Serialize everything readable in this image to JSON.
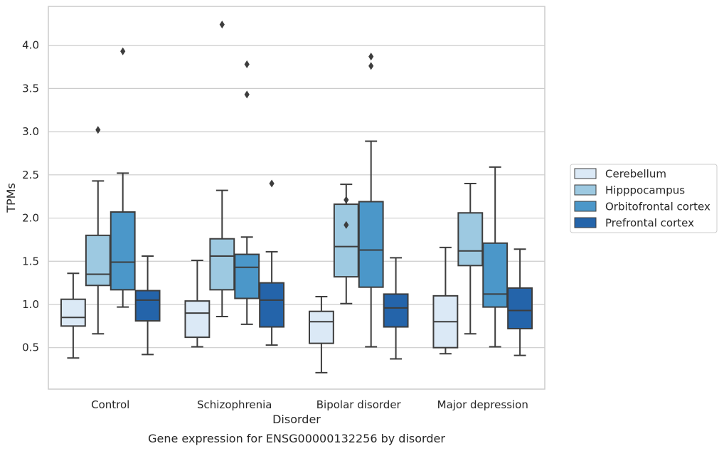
{
  "chart_data": {
    "type": "box",
    "caption": "Gene expression for ENSG00000132256 by disorder",
    "xlabel": "Disorder",
    "ylabel": "TPMs",
    "ylim": [
      0.02,
      4.45
    ],
    "yticks": [
      0.5,
      1.0,
      1.5,
      2.0,
      2.5,
      3.0,
      3.5,
      4.0
    ],
    "ytick_labels": [
      "0.5",
      "1.0",
      "1.5",
      "2.0",
      "2.5",
      "3.0",
      "3.5",
      "4.0"
    ],
    "grid": "horizontal",
    "legend_position": "right",
    "categories": [
      "Control",
      "Schizophrenia",
      "Bipolar disorder",
      "Major depression"
    ],
    "series": [
      {
        "name": "Cerebellum",
        "color": "#dbe9f6",
        "boxes": [
          {
            "whisker_low": 0.38,
            "q1": 0.75,
            "median": 0.85,
            "q3": 1.06,
            "whisker_high": 1.36,
            "outliers": []
          },
          {
            "whisker_low": 0.51,
            "q1": 0.62,
            "median": 0.9,
            "q3": 1.04,
            "whisker_high": 1.51,
            "outliers": []
          },
          {
            "whisker_low": 0.21,
            "q1": 0.55,
            "median": 0.8,
            "q3": 0.92,
            "whisker_high": 1.09,
            "outliers": []
          },
          {
            "whisker_low": 0.43,
            "q1": 0.5,
            "median": 0.8,
            "q3": 1.1,
            "whisker_high": 1.66,
            "outliers": []
          }
        ]
      },
      {
        "name": "Hipppocampus",
        "color": "#9dc9e1",
        "boxes": [
          {
            "whisker_low": 0.66,
            "q1": 1.22,
            "median": 1.35,
            "q3": 1.8,
            "whisker_high": 2.43,
            "outliers": [
              3.02
            ]
          },
          {
            "whisker_low": 0.86,
            "q1": 1.17,
            "median": 1.56,
            "q3": 1.76,
            "whisker_high": 2.32,
            "outliers": [
              4.24
            ]
          },
          {
            "whisker_low": 1.01,
            "q1": 1.32,
            "median": 1.67,
            "q3": 2.16,
            "whisker_high": 2.39,
            "outliers": [
              2.21,
              1.92
            ]
          },
          {
            "whisker_low": 0.66,
            "q1": 1.45,
            "median": 1.62,
            "q3": 2.06,
            "whisker_high": 2.4,
            "outliers": []
          }
        ]
      },
      {
        "name": "Orbitofrontal cortex",
        "color": "#4b97c9",
        "boxes": [
          {
            "whisker_low": 0.97,
            "q1": 1.17,
            "median": 1.49,
            "q3": 2.07,
            "whisker_high": 2.52,
            "outliers": [
              3.93
            ]
          },
          {
            "whisker_low": 0.77,
            "q1": 1.07,
            "median": 1.43,
            "q3": 1.58,
            "whisker_high": 1.78,
            "outliers": [
              3.78,
              3.43
            ]
          },
          {
            "whisker_low": 0.51,
            "q1": 1.2,
            "median": 1.63,
            "q3": 2.19,
            "whisker_high": 2.89,
            "outliers": [
              3.87,
              3.76
            ]
          },
          {
            "whisker_low": 0.51,
            "q1": 0.97,
            "median": 1.12,
            "q3": 1.71,
            "whisker_high": 2.59,
            "outliers": []
          }
        ]
      },
      {
        "name": "Prefrontal cortex",
        "color": "#2464aa",
        "boxes": [
          {
            "whisker_low": 0.42,
            "q1": 0.81,
            "median": 1.05,
            "q3": 1.16,
            "whisker_high": 1.56,
            "outliers": []
          },
          {
            "whisker_low": 0.53,
            "q1": 0.74,
            "median": 1.05,
            "q3": 1.25,
            "whisker_high": 1.61,
            "outliers": [
              2.4
            ]
          },
          {
            "whisker_low": 0.37,
            "q1": 0.74,
            "median": 0.96,
            "q3": 1.12,
            "whisker_high": 1.54,
            "outliers": []
          },
          {
            "whisker_low": 0.41,
            "q1": 0.72,
            "median": 0.93,
            "q3": 1.19,
            "whisker_high": 1.64,
            "outliers": []
          }
        ]
      }
    ]
  },
  "style": {
    "grid_color": "#cccccc",
    "frame_color": "#cccccc",
    "line_color": "#3d3d3d",
    "outlier_color": "#3d3d3d"
  }
}
